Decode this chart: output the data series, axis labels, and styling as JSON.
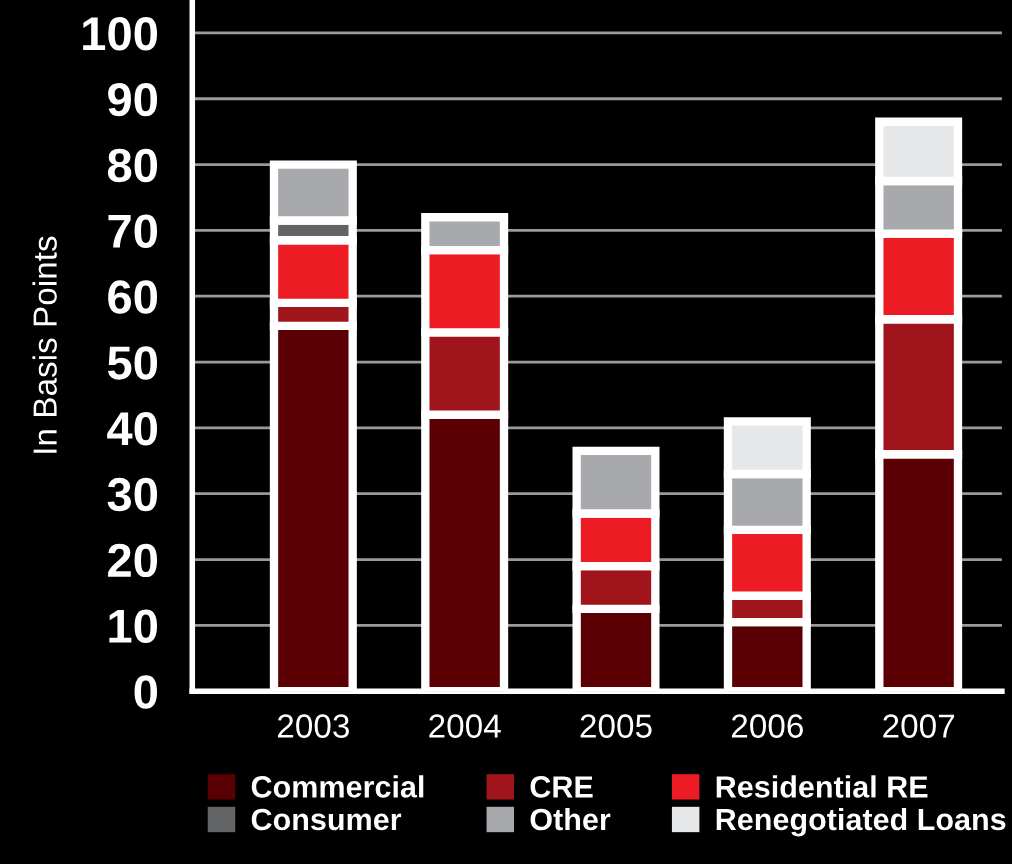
{
  "chart_data": {
    "type": "bar",
    "stacked": true,
    "ylabel": "In Basis Points",
    "categories": [
      "2003",
      "2004",
      "2005",
      "2006",
      "2007"
    ],
    "series": [
      {
        "name": "Commercial",
        "color": "#5a0005",
        "values": [
          55.5,
          42,
          12.5,
          10.5,
          36
        ]
      },
      {
        "name": "CRE",
        "color": "#a0151b",
        "values": [
          3.5,
          12.5,
          6.5,
          4,
          20.5
        ]
      },
      {
        "name": "Residential RE",
        "color": "#ed1c24",
        "values": [
          9.5,
          12.5,
          8,
          10,
          13
        ]
      },
      {
        "name": "Consumer",
        "color": "#636466",
        "values": [
          3,
          0,
          0,
          0,
          0
        ]
      },
      {
        "name": "Other",
        "color": "#a7a9ac",
        "values": [
          8.5,
          5,
          9.5,
          8.5,
          8
        ]
      },
      {
        "name": "Renegotiated Loans",
        "color": "#e6e7e8",
        "values": [
          0,
          0,
          0,
          8,
          9
        ]
      }
    ],
    "ylim": [
      0,
      105
    ],
    "yticks": [
      0,
      10,
      20,
      30,
      40,
      50,
      60,
      70,
      80,
      90,
      100
    ],
    "grid": "y",
    "legend": "bottom"
  }
}
